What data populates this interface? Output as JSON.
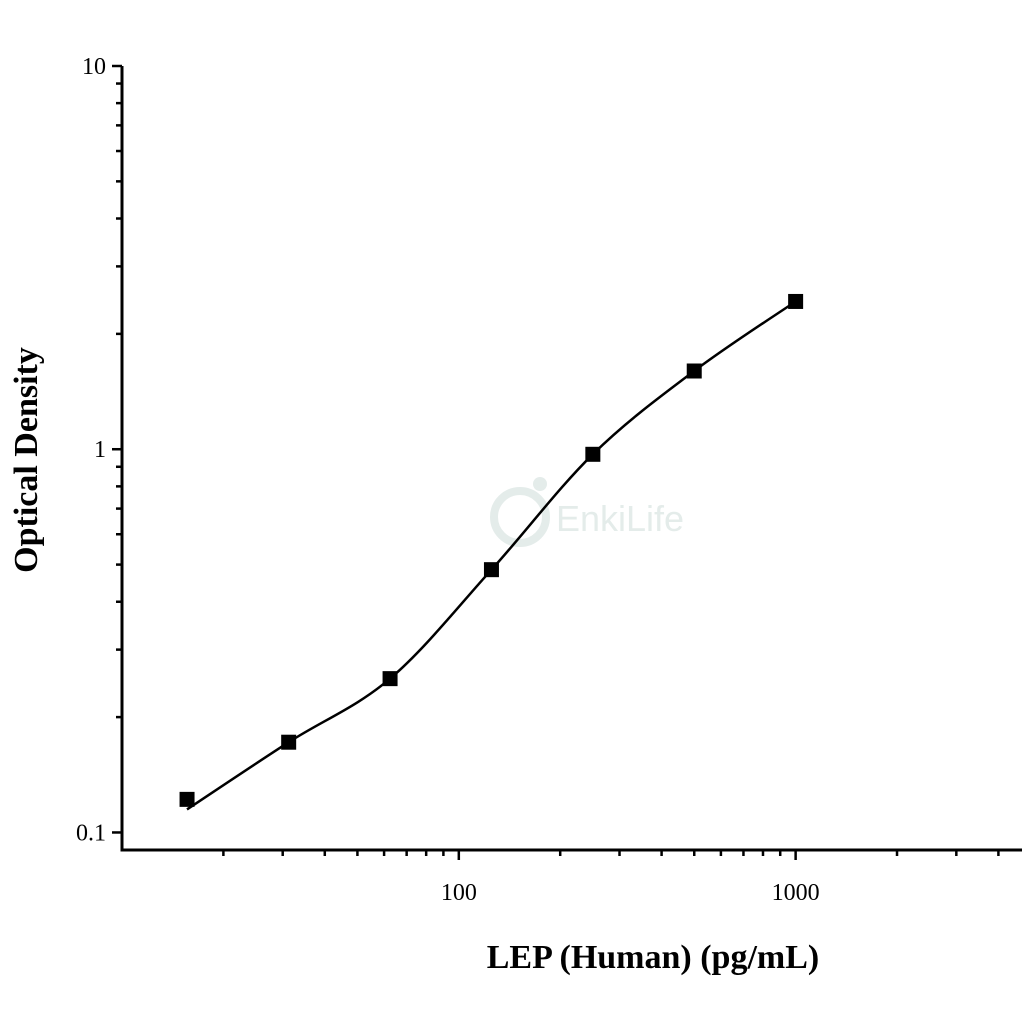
{
  "chart_data": {
    "type": "scatter",
    "title": "",
    "xlabel": "LEP (Human) (pg/mL)",
    "ylabel": "Optical Density",
    "x_scale": "log",
    "y_scale": "log",
    "xlim": [
      10,
      4700
    ],
    "ylim": [
      0.09,
      10
    ],
    "x_ticks": [
      {
        "value": 100,
        "label": "100"
      },
      {
        "value": 1000,
        "label": "1000"
      }
    ],
    "y_ticks": [
      {
        "value": 0.1,
        "label": "0.1"
      },
      {
        "value": 1,
        "label": "1"
      },
      {
        "value": 10,
        "label": "10"
      }
    ],
    "grid": false,
    "legend": "none",
    "marker": "square",
    "fit": "smooth curve through points",
    "series": [
      {
        "x": [
          15.6,
          31.25,
          62.5,
          125,
          250,
          500,
          1000
        ],
        "y": [
          0.122,
          0.172,
          0.252,
          0.485,
          0.97,
          1.6,
          2.43
        ]
      }
    ]
  },
  "watermark": {
    "text": "EnkiLife",
    "color": "#e4ecea"
  }
}
